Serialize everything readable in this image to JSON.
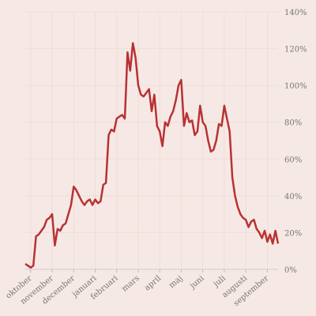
{
  "chart_data": {
    "type": "line",
    "color": "#b83234",
    "grid": true,
    "values": [
      3,
      2,
      1,
      2,
      18,
      19,
      21,
      23,
      27,
      28,
      30,
      13,
      22,
      21,
      24,
      25,
      30,
      35,
      45,
      43,
      40,
      37,
      35,
      37,
      38,
      35,
      38,
      36,
      37,
      46,
      47,
      73,
      76,
      75,
      82,
      83,
      84,
      82,
      118,
      108,
      123,
      115,
      100,
      95,
      94,
      96,
      98,
      86,
      95,
      78,
      75,
      67,
      80,
      78,
      83,
      86,
      92,
      100,
      103,
      78,
      85,
      80,
      81,
      73,
      75,
      89,
      80,
      78,
      70,
      64,
      65,
      70,
      79,
      78,
      89,
      82,
      75,
      50,
      40,
      34,
      30,
      28,
      27,
      23,
      26,
      27,
      22,
      20,
      17,
      21,
      15,
      19,
      14,
      21,
      14
    ],
    "ylim": [
      0,
      140
    ],
    "yticks": [
      {
        "value": 0,
        "label": "0%"
      },
      {
        "value": 20,
        "label": "20%"
      },
      {
        "value": 40,
        "label": "40%"
      },
      {
        "value": 60,
        "label": "60%"
      },
      {
        "value": 80,
        "label": "80%"
      },
      {
        "value": 100,
        "label": "100%"
      },
      {
        "value": 120,
        "label": "120%"
      },
      {
        "value": 140,
        "label": "140%"
      }
    ],
    "xticks": [
      {
        "value": 2,
        "label": "oktober"
      },
      {
        "value": 10,
        "label": "november"
      },
      {
        "value": 18,
        "label": "december"
      },
      {
        "value": 26,
        "label": "januari"
      },
      {
        "value": 34,
        "label": "februari"
      },
      {
        "value": 42,
        "label": "mars"
      },
      {
        "value": 50,
        "label": "april"
      },
      {
        "value": 58,
        "label": "maj"
      },
      {
        "value": 66,
        "label": "juni"
      },
      {
        "value": 74,
        "label": "juli"
      },
      {
        "value": 82,
        "label": "augusti"
      },
      {
        "value": 90,
        "label": "september"
      }
    ]
  }
}
